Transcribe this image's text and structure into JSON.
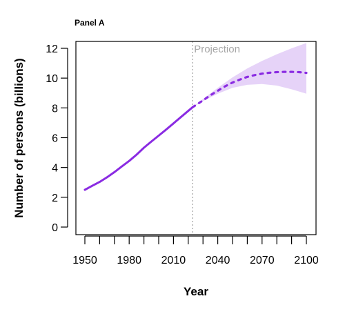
{
  "panel_label": "Panel A",
  "chart_data": {
    "type": "line",
    "title": "",
    "xlabel": "Year",
    "ylabel": "Number of persons (billions)",
    "xlim": [
      1950,
      2100
    ],
    "ylim": [
      0,
      12
    ],
    "x_ticks": [
      1950,
      1980,
      2010,
      2040,
      2070,
      2100
    ],
    "y_ticks": [
      0,
      2,
      4,
      6,
      8,
      10,
      12
    ],
    "annotation": {
      "text": "Projection",
      "x": 2023
    },
    "colors": {
      "line": "#8a2be2",
      "band": "#e2cbf7",
      "divider": "#9e9e9e"
    },
    "grid": false,
    "series": [
      {
        "style": "solid",
        "x": [
          1950,
          1955,
          1960,
          1965,
          1970,
          1975,
          1980,
          1985,
          1990,
          1995,
          2000,
          2005,
          2010,
          2015,
          2020,
          2023
        ],
        "y": [
          2.5,
          2.77,
          3.03,
          3.34,
          3.69,
          4.07,
          4.44,
          4.86,
          5.33,
          5.74,
          6.14,
          6.54,
          6.96,
          7.38,
          7.8,
          8.05
        ]
      },
      {
        "style": "dashed",
        "x": [
          2023,
          2030,
          2035,
          2040,
          2045,
          2050,
          2055,
          2060,
          2065,
          2070,
          2075,
          2080,
          2085,
          2090,
          2095,
          2100
        ],
        "y": [
          8.05,
          8.5,
          8.85,
          9.15,
          9.45,
          9.7,
          9.9,
          10.08,
          10.2,
          10.3,
          10.36,
          10.4,
          10.42,
          10.42,
          10.4,
          10.35
        ]
      }
    ],
    "band": {
      "x": [
        2023,
        2030,
        2040,
        2050,
        2060,
        2070,
        2080,
        2090,
        2100
      ],
      "lower": [
        8.05,
        8.45,
        8.95,
        9.35,
        9.55,
        9.6,
        9.5,
        9.25,
        8.95
      ],
      "upper": [
        8.05,
        8.6,
        9.35,
        10.05,
        10.65,
        11.15,
        11.6,
        12.0,
        12.35
      ]
    }
  }
}
